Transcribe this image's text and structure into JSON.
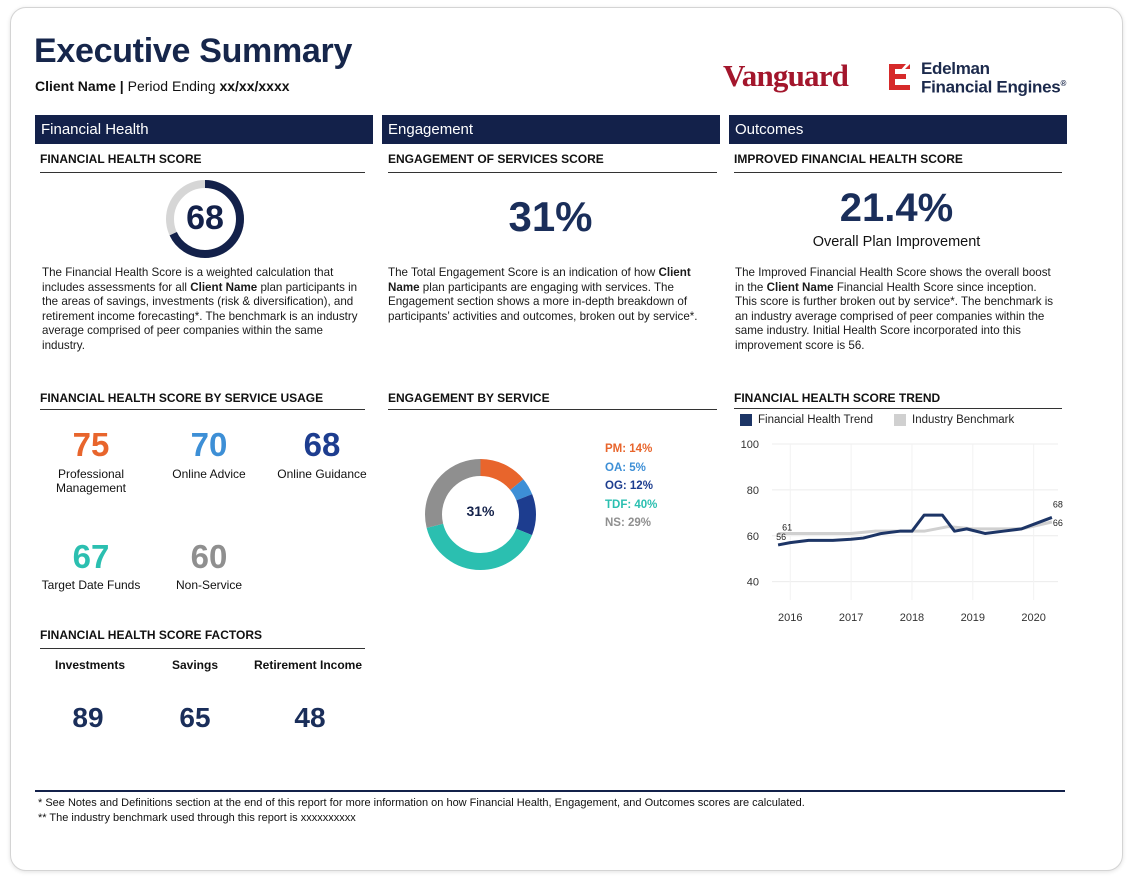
{
  "header": {
    "title": "Executive Summary",
    "client_name": "Client Name",
    "separator": " | ",
    "period_label": "Period Ending ",
    "period_value": "xx/xx/xxxx"
  },
  "logos": {
    "vanguard": "Vanguard",
    "efe_line1": "Edelman",
    "efe_line2": "Financial Engines",
    "efe_mark": "®"
  },
  "sections": {
    "financial_health": "Financial Health",
    "engagement": "Engagement",
    "outcomes": "Outcomes"
  },
  "financial_health": {
    "score_heading": "FINANCIAL HEALTH SCORE",
    "score": "68",
    "score_value": 68,
    "desc_1": "The Financial Health Score is a weighted calculation that includes assessments for all ",
    "desc_bold": "Client Name",
    "desc_2": " plan participants in the areas of savings, investments (risk & diversification), and retirement income forecasting*. The benchmark is an industry average comprised of peer companies within the same industry.",
    "usage_heading": "FINANCIAL HEALTH SCORE BY SERVICE USAGE",
    "usage": [
      {
        "score": "75",
        "label": "Professional Management",
        "color": "#e8652c"
      },
      {
        "score": "70",
        "label": "Online Advice",
        "color": "#3d8fd6"
      },
      {
        "score": "68",
        "label": "Online Guidance",
        "color": "#1d3d8f"
      },
      {
        "score": "67",
        "label": "Target Date Funds",
        "color": "#2bbfb0"
      },
      {
        "score": "60",
        "label": "Non-Service",
        "color": "#8f8f8f"
      }
    ],
    "factors_heading": "FINANCIAL HEALTH SCORE FACTORS",
    "factors": [
      {
        "label": "Investments",
        "value": "89"
      },
      {
        "label": "Savings",
        "value": "65"
      },
      {
        "label": "Retirement Income",
        "value": "48"
      }
    ]
  },
  "engagement": {
    "score_heading": "ENGAGEMENT OF SERVICES SCORE",
    "score": "31%",
    "desc_1": "The Total Engagement Score is an indication of how ",
    "desc_bold": "Client Name",
    "desc_2": " plan participants are engaging with services. The Engagement section shows a more in-depth breakdown of participants’ activities and outcomes, broken out by service*.",
    "by_service_heading": "ENGAGEMENT BY SERVICE",
    "donut_center": "31%",
    "legend": [
      {
        "label": "PM: 14%",
        "color": "#e8652c"
      },
      {
        "label": "OA: 5%",
        "color": "#3d8fd6"
      },
      {
        "label": "OG: 12%",
        "color": "#1d3d8f"
      },
      {
        "label": "TDF: 40%",
        "color": "#2bbfb0"
      },
      {
        "label": "NS: 29%",
        "color": "#8f8f8f"
      }
    ]
  },
  "outcomes": {
    "score_heading": "IMPROVED FINANCIAL HEALTH SCORE",
    "score": "21.4%",
    "score_caption": "Overall Plan Improvement",
    "desc_1": "The Improved Financial Health Score shows the overall boost in the ",
    "desc_bold": "Client Name",
    "desc_2": " Financial Health Score since inception. This score is further broken out by service*. The benchmark is an industry average comprised of peer companies within the same industry. Initial Health Score incorporated into this improvement score is 56.",
    "trend_heading": "FINANCIAL HEALTH SCORE TREND"
  },
  "footnotes": {
    "note_1": "* See Notes and Definitions section at the end of this report for more information on how Financial Health, Engagement, and Outcomes scores are calculated.",
    "note_2": "** The industry benchmark used through this report is xxxxxxxxxx"
  },
  "chart_data": [
    {
      "type": "pie",
      "title": "ENGAGEMENT BY SERVICE",
      "center_label": "31%",
      "categories": [
        "PM",
        "OA",
        "OG",
        "TDF",
        "NS"
      ],
      "values": [
        14,
        5,
        12,
        40,
        29
      ],
      "colors": [
        "#e8652c",
        "#3d8fd6",
        "#1d3d8f",
        "#2bbfb0",
        "#8f8f8f"
      ]
    },
    {
      "type": "line",
      "title": "FINANCIAL HEALTH SCORE TREND",
      "xlim": [
        2015.7,
        2020.4
      ],
      "ylim": [
        32,
        100
      ],
      "yticks": [
        40,
        60,
        80,
        100
      ],
      "xticks": [
        2016,
        2017,
        2018,
        2019,
        2020
      ],
      "series": [
        {
          "name": "Financial Health Trend",
          "color": "#1d3566",
          "x": [
            2015.8,
            2016.0,
            2016.3,
            2016.7,
            2017.0,
            2017.2,
            2017.5,
            2017.8,
            2018.0,
            2018.2,
            2018.5,
            2018.7,
            2018.9,
            2019.2,
            2019.5,
            2019.8,
            2020.0,
            2020.3
          ],
          "y": [
            56,
            57,
            58,
            58,
            58.5,
            59,
            61,
            62,
            62,
            69,
            69,
            62,
            63,
            61,
            62,
            63,
            65,
            68
          ],
          "start_label": "56",
          "end_label": "68"
        },
        {
          "name": "Industry Benchmark",
          "color": "#d0d0d0",
          "x": [
            2015.8,
            2016.2,
            2016.6,
            2017.0,
            2017.4,
            2017.8,
            2018.2,
            2018.6,
            2019.0,
            2019.4,
            2019.8,
            2020.3
          ],
          "y": [
            61,
            61,
            61,
            61,
            62,
            62,
            62,
            64,
            63,
            63,
            63,
            66
          ],
          "start_label": "61",
          "end_label": "66"
        }
      ],
      "legend": [
        "Financial Health Trend",
        "Industry Benchmark"
      ]
    }
  ]
}
